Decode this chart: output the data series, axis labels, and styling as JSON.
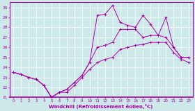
{
  "xlabel": "Windchill (Refroidissement éolien,°C)",
  "xlim": [
    -0.5,
    23.5
  ],
  "ylim": [
    21,
    30.5
  ],
  "xticks": [
    0,
    1,
    2,
    3,
    4,
    5,
    6,
    7,
    8,
    9,
    10,
    11,
    12,
    13,
    14,
    15,
    16,
    17,
    18,
    19,
    20,
    21,
    22,
    23
  ],
  "yticks": [
    21,
    22,
    23,
    24,
    25,
    26,
    27,
    28,
    29,
    30
  ],
  "bg_color": "#cce8e8",
  "line_color": "#aa00aa",
  "grid_color": "#ffffff",
  "line1_x": [
    0,
    1,
    2,
    3,
    4,
    5,
    6,
    7,
    8,
    9,
    10,
    11,
    12,
    13,
    14,
    15,
    16,
    17,
    18,
    19,
    20,
    21,
    22,
    23
  ],
  "line1_y": [
    23.5,
    23.3,
    23.0,
    22.8,
    22.2,
    21.0,
    21.5,
    21.5,
    22.2,
    23.0,
    23.8,
    24.5,
    24.8,
    25.0,
    25.8,
    26.0,
    26.2,
    26.3,
    26.5,
    26.5,
    26.5,
    25.5,
    24.8,
    24.5
  ],
  "line2_x": [
    0,
    1,
    2,
    3,
    4,
    5,
    6,
    7,
    8,
    9,
    10,
    11,
    12,
    13,
    14,
    15,
    16,
    17,
    18,
    19,
    20,
    21,
    22,
    23
  ],
  "line2_y": [
    23.5,
    23.3,
    23.0,
    22.8,
    22.2,
    21.0,
    21.5,
    21.8,
    22.5,
    23.2,
    24.5,
    26.0,
    26.2,
    26.5,
    27.8,
    27.8,
    27.8,
    27.0,
    27.2,
    27.2,
    27.0,
    26.0,
    25.0,
    25.0
  ],
  "line3_x": [
    0,
    1,
    2,
    3,
    4,
    5,
    6,
    7,
    8,
    9,
    10,
    11,
    12,
    13,
    14,
    15,
    16,
    17,
    18,
    19,
    20,
    21,
    22,
    23
  ],
  "line3_y": [
    23.5,
    23.3,
    23.0,
    22.8,
    22.2,
    21.0,
    21.5,
    21.8,
    22.5,
    23.2,
    24.5,
    29.2,
    29.3,
    30.2,
    28.5,
    28.2,
    28.0,
    29.2,
    28.3,
    27.2,
    29.0,
    26.0,
    25.0,
    25.0
  ]
}
